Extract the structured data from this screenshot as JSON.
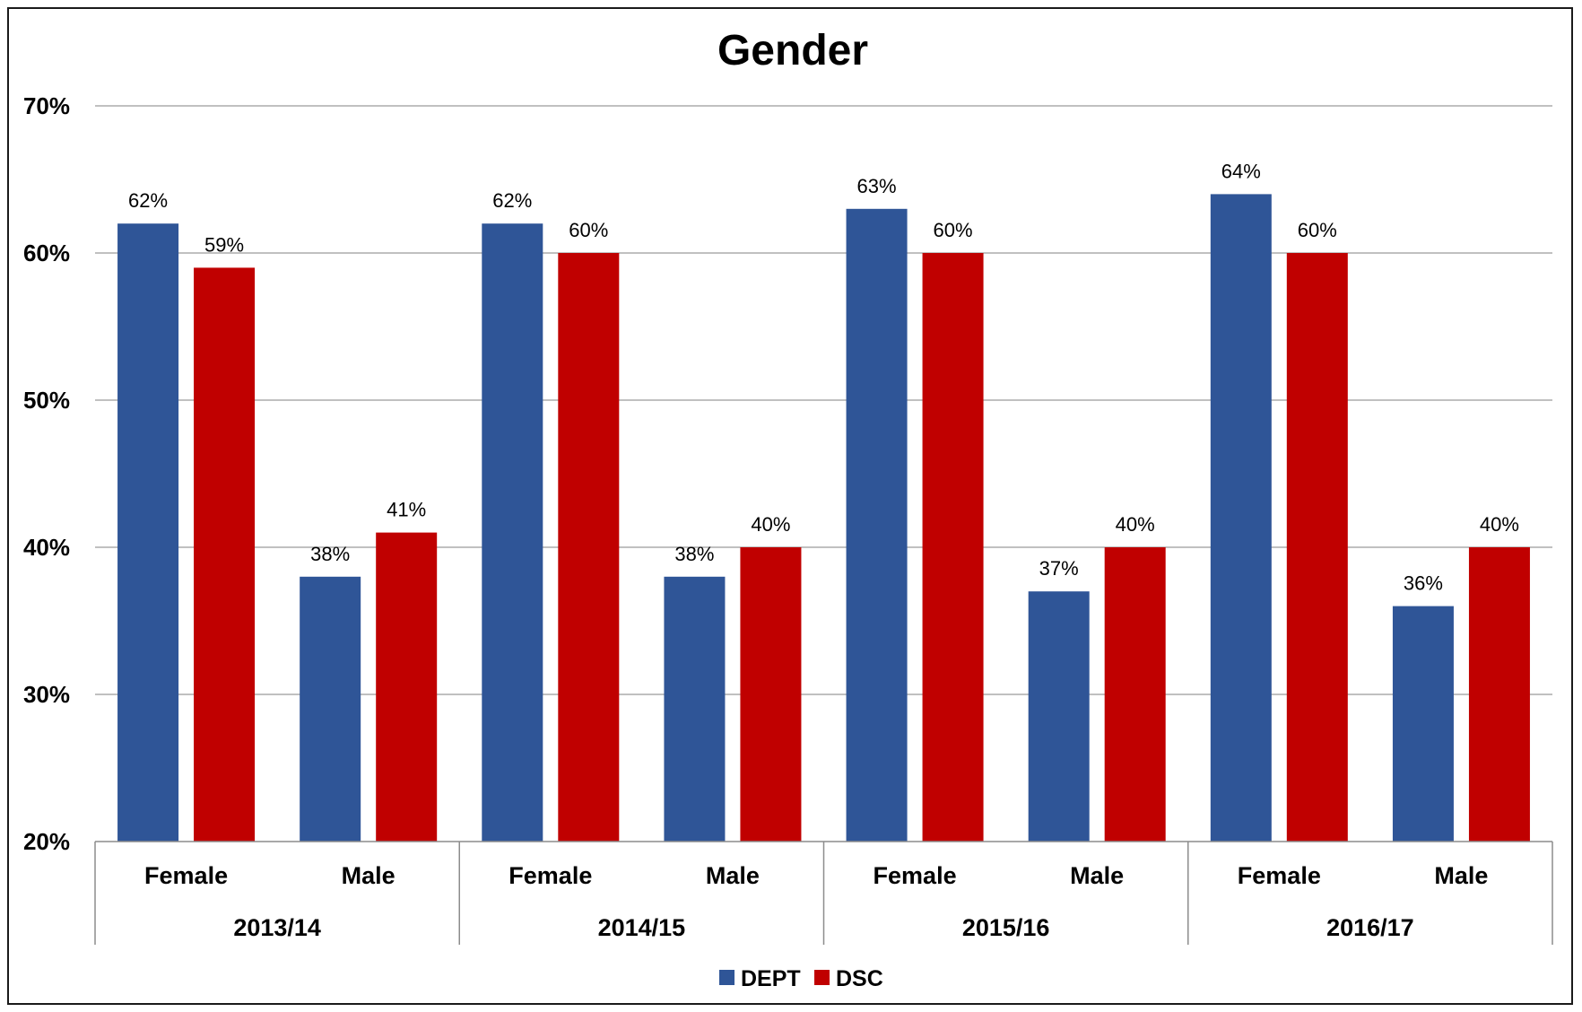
{
  "chart_data": {
    "type": "bar",
    "title": "Gender",
    "xlabel": "",
    "ylabel": "",
    "ylim": [
      20,
      70
    ],
    "yticks": [
      "20%",
      "30%",
      "40%",
      "50%",
      "60%",
      "70%"
    ],
    "ytick_values": [
      20,
      30,
      40,
      50,
      60,
      70
    ],
    "grid": true,
    "legend_position": "bottom",
    "groups": [
      "2013/14",
      "2014/15",
      "2015/16",
      "2016/17"
    ],
    "subcategories": [
      "Female",
      "Male"
    ],
    "categories": [
      "2013/14 Female",
      "2013/14 Male",
      "2014/15 Female",
      "2014/15 Male",
      "2015/16 Female",
      "2015/16 Male",
      "2016/17 Female",
      "2016/17 Male"
    ],
    "series": [
      {
        "name": "DEPT",
        "color": "#2F5597",
        "values": [
          62,
          38,
          62,
          38,
          63,
          37,
          64,
          36
        ],
        "labels": [
          "62%",
          "38%",
          "62%",
          "38%",
          "63%",
          "37%",
          "64%",
          "36%"
        ]
      },
      {
        "name": "DSC",
        "color": "#C00000",
        "values": [
          59,
          41,
          60,
          40,
          60,
          40,
          60,
          40
        ],
        "labels": [
          "59%",
          "41%",
          "60%",
          "40%",
          "60%",
          "40%",
          "60%",
          "40%"
        ]
      }
    ]
  }
}
